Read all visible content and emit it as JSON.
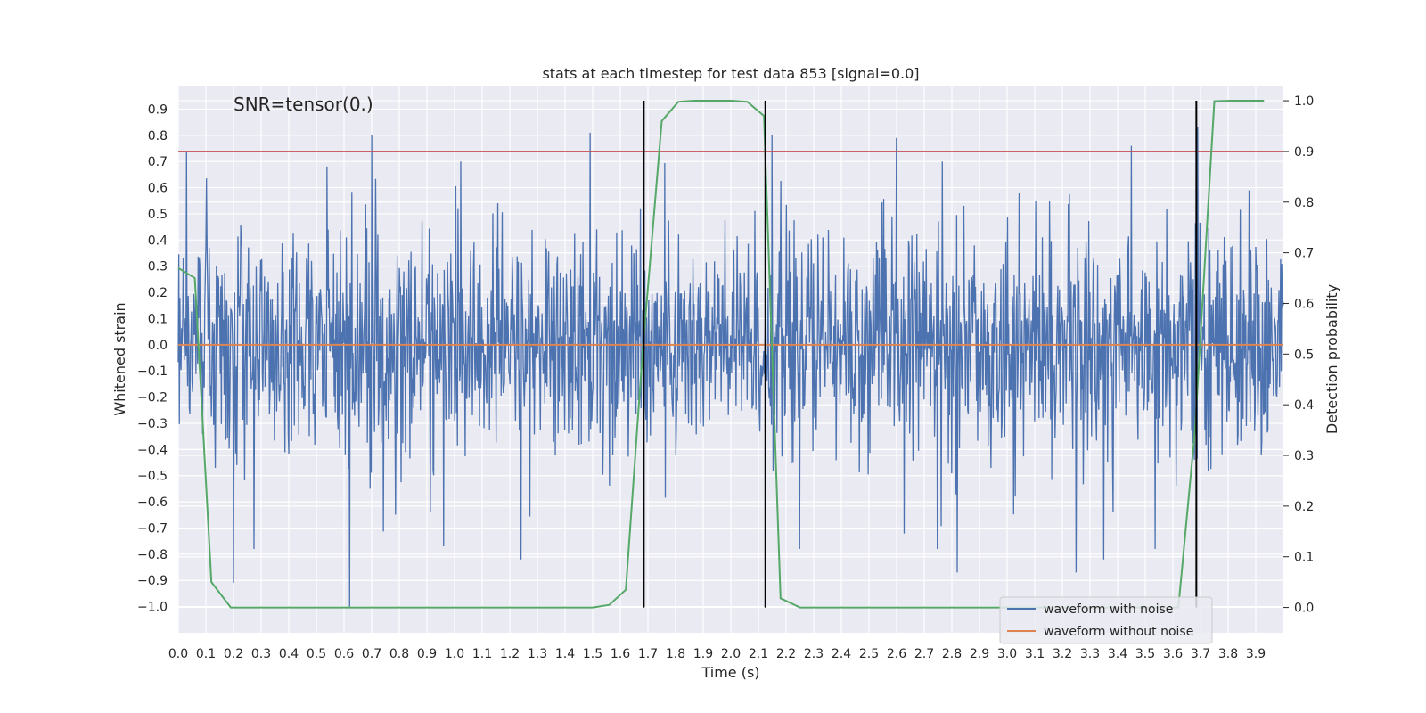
{
  "chart_data": {
    "type": "line",
    "title": "stats at each timestep for test data 853 [signal=0.0]",
    "xlabel": "Time (s)",
    "ylabel": "Whitened strain",
    "y2label": "Detection probability",
    "annotation": "SNR=tensor(0.)",
    "xlim": [
      0.0,
      4.0
    ],
    "ylim": [
      -1.1,
      0.99
    ],
    "y2lim": [
      -0.05,
      1.03
    ],
    "x_ticks": [
      0.0,
      0.1,
      0.2,
      0.3,
      0.4,
      0.5,
      0.6,
      0.7,
      0.8,
      0.9,
      1.0,
      1.1,
      1.2,
      1.3,
      1.4,
      1.5,
      1.6,
      1.7,
      1.8,
      1.9,
      2.0,
      2.1,
      2.2,
      2.3,
      2.4,
      2.5,
      2.6,
      2.7,
      2.8,
      2.9,
      3.0,
      3.1,
      3.2,
      3.3,
      3.4,
      3.5,
      3.6,
      3.7,
      3.8,
      3.9
    ],
    "x_tick_labels": [
      "0.0",
      "0.1",
      "0.2",
      "0.3",
      "0.4",
      "0.5",
      "0.6",
      "0.7",
      "0.8",
      "0.9",
      "1.0",
      "1.1",
      "1.2",
      "1.3",
      "1.4",
      "1.5",
      "1.6",
      "1.7",
      "1.8",
      "1.9",
      "2.0",
      "2.1",
      "2.2",
      "2.3",
      "2.4",
      "2.5",
      "2.6",
      "2.7",
      "2.8",
      "2.9",
      "3.0",
      "3.1",
      "3.2",
      "3.3",
      "3.4",
      "3.5",
      "3.6",
      "3.7",
      "3.8",
      "3.9"
    ],
    "y_ticks": [
      0.9,
      0.8,
      0.7,
      0.6,
      0.5,
      0.4,
      0.3,
      0.2,
      0.1,
      0.0,
      -0.1,
      -0.2,
      -0.3,
      -0.4,
      -0.5,
      -0.6,
      -0.7,
      -0.8,
      -0.9,
      -1.0
    ],
    "y_tick_labels": [
      "0.9",
      "0.8",
      "0.7",
      "0.6",
      "0.5",
      "0.4",
      "0.3",
      "0.2",
      "0.1",
      "0.0",
      "−0.1",
      "−0.2",
      "−0.3",
      "−0.4",
      "−0.5",
      "−0.6",
      "−0.7",
      "−0.8",
      "−0.9",
      "−1.0"
    ],
    "y2_ticks": [
      1.0,
      0.9,
      0.8,
      0.7,
      0.6,
      0.5,
      0.4,
      0.3,
      0.2,
      0.1,
      0.0
    ],
    "y2_tick_labels": [
      "1.0",
      "0.9",
      "0.8",
      "0.7",
      "0.6",
      "0.5",
      "0.4",
      "0.3",
      "0.2",
      "0.1",
      "0.0"
    ],
    "series": [
      {
        "name": "waveform with noise",
        "color": "#4c72b0",
        "kind": "noise",
        "seed": 853,
        "n_samples": 2000,
        "typical_range": [
          -0.45,
          0.45
        ],
        "extremes": [
          {
            "x": 0.03,
            "y": 0.74
          },
          {
            "x": 0.62,
            "y": -1.0
          },
          {
            "x": 0.7,
            "y": 0.8
          },
          {
            "x": 1.49,
            "y": 0.81
          },
          {
            "x": 2.15,
            "y": 0.8
          },
          {
            "x": 2.6,
            "y": 0.79
          },
          {
            "x": 3.45,
            "y": 0.76
          },
          {
            "x": 3.69,
            "y": 0.83
          },
          {
            "x": 0.2,
            "y": -0.91
          },
          {
            "x": 1.24,
            "y": -0.82
          },
          {
            "x": 2.82,
            "y": -0.87
          },
          {
            "x": 3.25,
            "y": -0.87
          },
          {
            "x": 0.96,
            "y": -0.77
          },
          {
            "x": 3.35,
            "y": -0.82
          }
        ]
      },
      {
        "name": "waveform without noise",
        "color": "#dd8452",
        "kind": "constant",
        "value": 0.0
      },
      {
        "name": "detection probability",
        "color": "#55a868",
        "kind": "line",
        "axis": "right",
        "x": [
          0.0,
          0.06,
          0.12,
          0.19,
          0.25,
          0.31,
          0.37,
          0.43,
          0.5,
          0.56,
          0.62,
          0.68,
          0.75,
          0.81,
          0.87,
          0.93,
          1.0,
          1.06,
          1.12,
          1.18,
          1.25,
          1.31,
          1.37,
          1.43,
          1.5,
          1.56,
          1.62,
          1.68,
          1.75,
          1.81,
          1.87,
          1.93,
          2.0,
          2.06,
          2.12,
          2.18,
          2.25,
          2.31,
          2.37,
          2.43,
          2.5,
          2.56,
          2.62,
          2.68,
          2.75,
          2.81,
          2.87,
          2.93,
          3.0,
          3.06,
          3.12,
          3.18,
          3.25,
          3.31,
          3.37,
          3.43,
          3.5,
          3.56,
          3.62,
          3.68,
          3.75,
          3.81,
          3.87,
          3.93
        ],
        "values": [
          0.67,
          0.65,
          0.05,
          0.0,
          0.0,
          0.0,
          0.0,
          0.0,
          0.0,
          0.0,
          0.0,
          0.0,
          0.0,
          0.0,
          0.0,
          0.0,
          0.0,
          0.0,
          0.0,
          0.0,
          0.0,
          0.0,
          0.0,
          0.0,
          0.0,
          0.005,
          0.035,
          0.5,
          0.96,
          0.998,
          1.0,
          1.0,
          1.0,
          0.998,
          0.97,
          0.018,
          0.0,
          0.0,
          0.0,
          0.0,
          0.0,
          0.0,
          0.0,
          0.0,
          0.0,
          0.0,
          0.0,
          0.0,
          0.0,
          0.0,
          0.0,
          0.0,
          0.0,
          0.0,
          0.0,
          0.0,
          0.0,
          0.0,
          0.0,
          0.35,
          0.999,
          1.0,
          1.0,
          1.0
        ]
      }
    ],
    "threshold": {
      "axis": "right",
      "value": 0.9,
      "color": "#c44e52"
    },
    "vlines": [
      {
        "x": 1.685,
        "y2_from": 0.0,
        "y2_to": 1.0
      },
      {
        "x": 2.125,
        "y2_from": 0.0,
        "y2_to": 1.0
      },
      {
        "x": 3.685,
        "y2_from": 0.0,
        "y2_to": 1.0
      }
    ],
    "legend": {
      "location": "lower-right",
      "entries": [
        {
          "label": "waveform with noise",
          "color": "#4c72b0"
        },
        {
          "label": "waveform without noise",
          "color": "#dd8452"
        }
      ]
    },
    "grid": true,
    "background": "#eaeaf2"
  }
}
